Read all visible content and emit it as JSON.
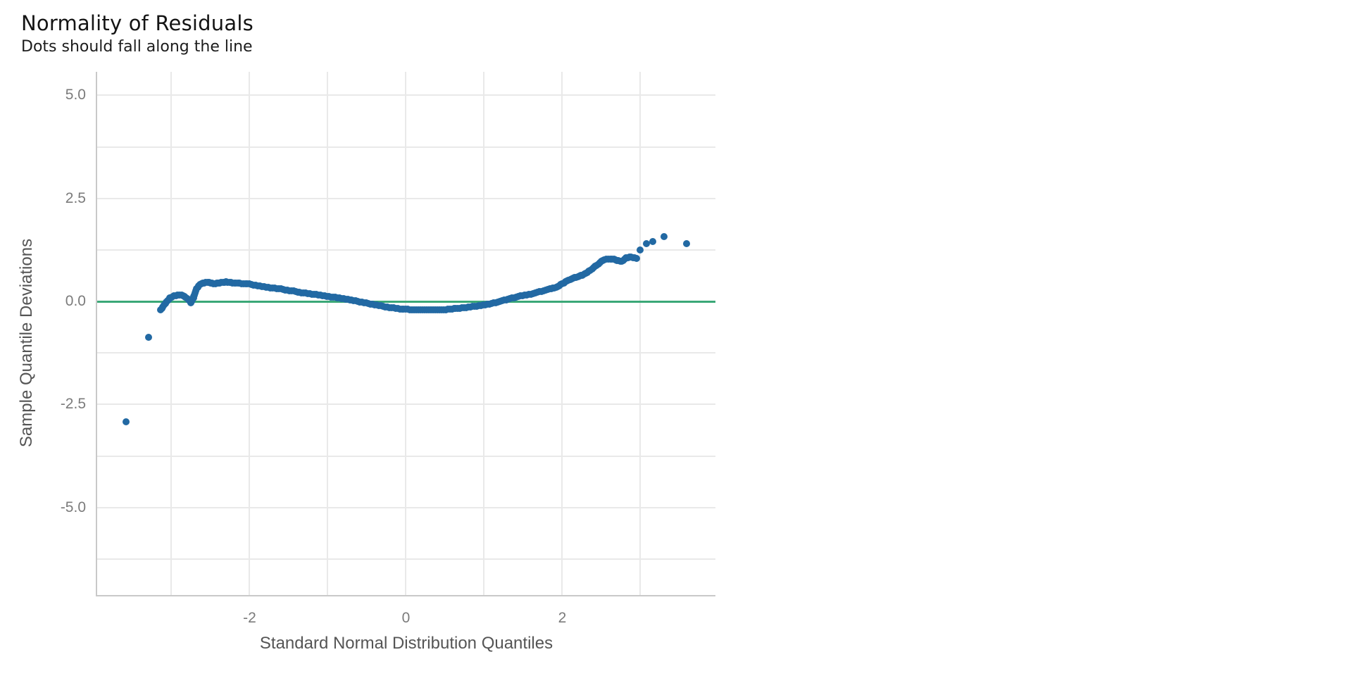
{
  "chart_data": {
    "type": "scatter",
    "title": "Normality of Residuals",
    "subtitle": "Dots should fall along the line",
    "xlabel": "Standard Normal Distribution Quantiles",
    "ylabel": "Sample Quantile Deviations",
    "xlim": [
      -3.95,
      3.96
    ],
    "ylim": [
      -7.14,
      5.57
    ],
    "grid": "on",
    "legend": "none",
    "x_gridlines": [
      -3,
      -2,
      -1,
      0,
      1,
      2,
      3
    ],
    "y_gridlines": [
      5,
      3.75,
      2.5,
      1.25,
      0,
      -1.25,
      -2.5,
      -3.75,
      -5,
      -6.25
    ],
    "x_ticks": [
      {
        "value": -2,
        "label": "-2"
      },
      {
        "value": 0,
        "label": "0"
      },
      {
        "value": 2,
        "label": "2"
      }
    ],
    "y_ticks": [
      {
        "value": 5,
        "label": "5.0"
      },
      {
        "value": 2.5,
        "label": "2.5"
      },
      {
        "value": 0,
        "label": "0.0"
      },
      {
        "value": -2.5,
        "label": "-2.5"
      },
      {
        "value": -5,
        "label": "-5.0"
      }
    ],
    "reference_line": {
      "y": 0,
      "color": "#3ba877"
    },
    "marker_color": "#2269a3",
    "marker_radius_px": 5,
    "band_points": [
      [
        -3.14,
        -0.21
      ],
      [
        -3.08,
        -0.05
      ],
      [
        -3.02,
        0.08
      ],
      [
        -2.97,
        0.13
      ],
      [
        -2.92,
        0.15
      ],
      [
        -2.87,
        0.16
      ],
      [
        -2.82,
        0.1
      ],
      [
        -2.78,
        0.04
      ],
      [
        -2.75,
        -0.03
      ],
      [
        -2.72,
        0.08
      ],
      [
        -2.7,
        0.2
      ],
      [
        -2.68,
        0.3
      ],
      [
        -2.65,
        0.38
      ],
      [
        -2.62,
        0.43
      ],
      [
        -2.58,
        0.45
      ],
      [
        -2.54,
        0.47
      ],
      [
        -2.5,
        0.45
      ],
      [
        -2.46,
        0.43
      ],
      [
        -2.42,
        0.44
      ],
      [
        -2.38,
        0.45
      ],
      [
        -2.34,
        0.46
      ],
      [
        -2.3,
        0.48
      ],
      [
        -2.26,
        0.46
      ],
      [
        -2.22,
        0.45
      ],
      [
        -2.15,
        0.44
      ],
      [
        -2.08,
        0.43
      ],
      [
        -2.0,
        0.42
      ],
      [
        -1.92,
        0.39
      ],
      [
        -1.84,
        0.36
      ],
      [
        -1.76,
        0.34
      ],
      [
        -1.68,
        0.32
      ],
      [
        -1.6,
        0.3
      ],
      [
        -1.52,
        0.27
      ],
      [
        -1.44,
        0.25
      ],
      [
        -1.36,
        0.22
      ],
      [
        -1.28,
        0.2
      ],
      [
        -1.2,
        0.18
      ],
      [
        -1.12,
        0.16
      ],
      [
        -1.04,
        0.13
      ],
      [
        -0.96,
        0.11
      ],
      [
        -0.88,
        0.09
      ],
      [
        -0.8,
        0.07
      ],
      [
        -0.72,
        0.04
      ],
      [
        -0.64,
        0.01
      ],
      [
        -0.56,
        -0.02
      ],
      [
        -0.48,
        -0.05
      ],
      [
        -0.4,
        -0.08
      ],
      [
        -0.32,
        -0.11
      ],
      [
        -0.24,
        -0.14
      ],
      [
        -0.16,
        -0.16
      ],
      [
        -0.08,
        -0.18
      ],
      [
        0.0,
        -0.19
      ],
      [
        0.08,
        -0.2
      ],
      [
        0.16,
        -0.21
      ],
      [
        0.24,
        -0.21
      ],
      [
        0.32,
        -0.21
      ],
      [
        0.4,
        -0.21
      ],
      [
        0.48,
        -0.2
      ],
      [
        0.56,
        -0.19
      ],
      [
        0.64,
        -0.17
      ],
      [
        0.72,
        -0.16
      ],
      [
        0.8,
        -0.14
      ],
      [
        0.88,
        -0.12
      ],
      [
        0.96,
        -0.1
      ],
      [
        1.04,
        -0.07
      ],
      [
        1.12,
        -0.04
      ],
      [
        1.2,
        0.0
      ],
      [
        1.28,
        0.04
      ],
      [
        1.36,
        0.08
      ],
      [
        1.44,
        0.12
      ],
      [
        1.52,
        0.15
      ],
      [
        1.6,
        0.18
      ],
      [
        1.68,
        0.22
      ],
      [
        1.76,
        0.26
      ],
      [
        1.84,
        0.3
      ],
      [
        1.9,
        0.33
      ],
      [
        1.96,
        0.38
      ],
      [
        2.02,
        0.45
      ],
      [
        2.08,
        0.52
      ],
      [
        2.14,
        0.57
      ],
      [
        2.2,
        0.6
      ],
      [
        2.26,
        0.64
      ],
      [
        2.32,
        0.7
      ],
      [
        2.38,
        0.79
      ],
      [
        2.44,
        0.88
      ],
      [
        2.5,
        0.97
      ],
      [
        2.56,
        1.02
      ],
      [
        2.64,
        1.03
      ],
      [
        2.7,
        1.0
      ],
      [
        2.76,
        0.97
      ],
      [
        2.82,
        1.06
      ],
      [
        2.88,
        1.08
      ],
      [
        2.95,
        1.04
      ]
    ],
    "isolated_points": [
      [
        -3.58,
        -2.92
      ],
      [
        -3.29,
        -0.87
      ],
      [
        3.0,
        1.25
      ],
      [
        3.08,
        1.4
      ],
      [
        3.16,
        1.46
      ],
      [
        3.3,
        1.57
      ],
      [
        3.59,
        1.4
      ]
    ],
    "colors": {
      "gridline": "#e9e9e9",
      "axis_line": "#c9c9c9",
      "tick_label": "#7b7b7b",
      "axis_title": "#555555",
      "title": "#141414",
      "subtitle": "#1c1c1c",
      "background": "#ffffff"
    }
  }
}
